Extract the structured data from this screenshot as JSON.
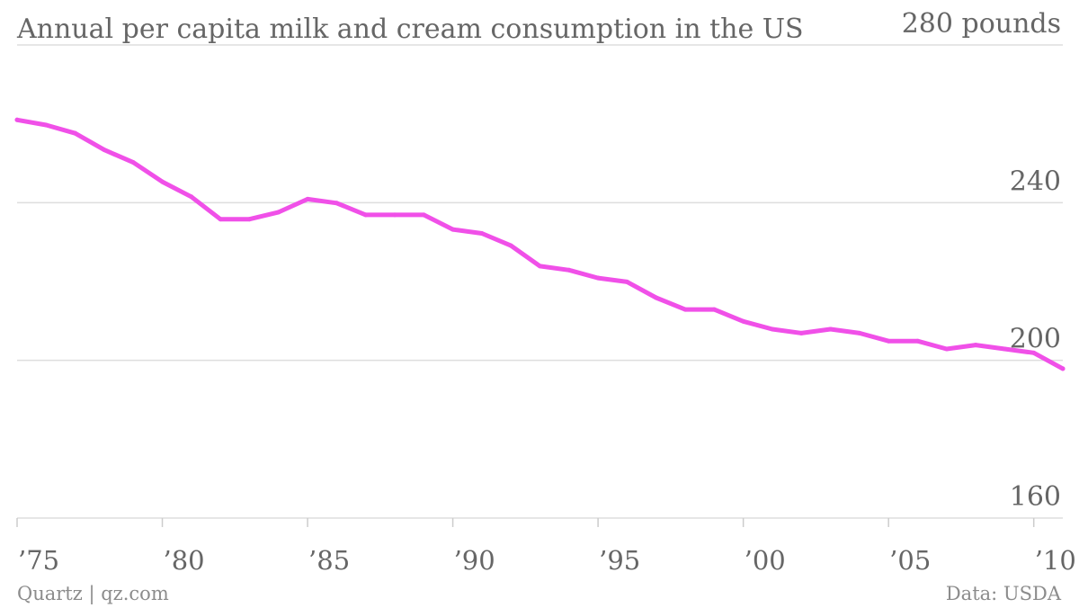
{
  "chart_data": {
    "type": "line",
    "title": "Annual per capita milk and cream consumption in the US",
    "y_tick_labels": [
      "280 pounds",
      "240",
      "200",
      "160"
    ],
    "y_ticks": [
      280,
      240,
      200,
      160
    ],
    "ylim": [
      160,
      280
    ],
    "xlim": [
      1975,
      2011
    ],
    "x_ticks": [
      1975,
      1980,
      1985,
      1990,
      1995,
      2000,
      2005,
      2010
    ],
    "x_tick_labels": [
      "’75",
      "’80",
      "’85",
      "’90",
      "’95",
      "’00",
      "’05",
      "’10"
    ],
    "grid": true,
    "series": [
      {
        "color": "#f050e8",
        "x": [
          1975,
          1976,
          1977,
          1978,
          1979,
          1980,
          1981,
          1982,
          1983,
          1984,
          1985,
          1986,
          1987,
          1988,
          1989,
          1990,
          1991,
          1992,
          1993,
          1994,
          1995,
          1996,
          1997,
          1998,
          1999,
          2000,
          2001,
          2002,
          2003,
          2004,
          2005,
          2006,
          2007,
          2008,
          2009,
          2010,
          2011
        ],
        "values": [
          261,
          259.7,
          257.6,
          253.4,
          250.2,
          245.3,
          241.5,
          235.8,
          235.8,
          237.6,
          240.9,
          239.9,
          236.9,
          236.9,
          236.9,
          233.2,
          232.2,
          229.1,
          223.9,
          222.9,
          220.9,
          219.9,
          215.9,
          212.9,
          212.9,
          209.9,
          207.9,
          206.9,
          207.9,
          206.9,
          204.9,
          204.9,
          202.9,
          203.9,
          202.9,
          201.9,
          197.9
        ]
      }
    ]
  },
  "footer": {
    "source_left": "Quartz | qz.com",
    "source_right": "Data: USDA"
  }
}
